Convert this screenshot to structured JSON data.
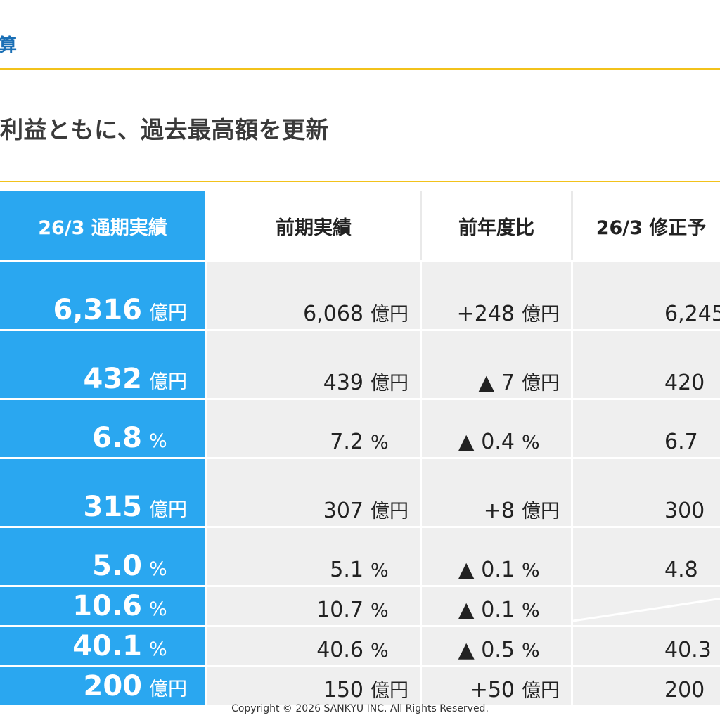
{
  "header": {
    "title_fragment": "算"
  },
  "subtitle": "利益ともに、過去最高額を更新",
  "table": {
    "columns": [
      "26/3 通期実績",
      "前期実績",
      "前年度比",
      "26/3 修正予"
    ],
    "rows": [
      {
        "actual": "6,316",
        "actual_unit": "億円",
        "prev": "6,068",
        "prev_unit": "億円",
        "diff": "+248",
        "diff_unit": "億円",
        "forecast": "6,245"
      },
      {
        "actual": "432",
        "actual_unit": "億円",
        "prev": "439",
        "prev_unit": "億円",
        "diff": "▲ 7",
        "diff_unit": "億円",
        "forecast": "420"
      },
      {
        "actual": "6.8",
        "actual_unit": "%",
        "prev": "7.2",
        "prev_unit": "%",
        "diff": "▲ 0.4",
        "diff_unit": "%",
        "forecast": "6.7"
      },
      {
        "actual": "315",
        "actual_unit": "億円",
        "prev": "307",
        "prev_unit": "億円",
        "diff": "+8",
        "diff_unit": "億円",
        "forecast": "300"
      },
      {
        "actual": "5.0",
        "actual_unit": "%",
        "prev": "5.1",
        "prev_unit": "%",
        "diff": "▲ 0.1",
        "diff_unit": "%",
        "forecast": "4.8"
      },
      {
        "actual": "10.6",
        "actual_unit": "%",
        "prev": "10.7",
        "prev_unit": "%",
        "diff": "▲ 0.1",
        "diff_unit": "%",
        "forecast": ""
      },
      {
        "actual": "40.1",
        "actual_unit": "%",
        "prev": "40.6",
        "prev_unit": "%",
        "diff": "▲ 0.5",
        "diff_unit": "%",
        "forecast": "40.3"
      },
      {
        "actual": "200",
        "actual_unit": "億円",
        "prev": "150",
        "prev_unit": "億円",
        "diff": "+50",
        "diff_unit": "億円",
        "forecast": "200"
      }
    ]
  },
  "footer": {
    "copyright": "Copyright © 2026 SANKYU INC. All Rights Reserved."
  },
  "colors": {
    "accent_blue": "#2aa7f0",
    "title_blue": "#1a6fb5",
    "rule_yellow": "#f2c21b",
    "cell_gray": "#efefef"
  }
}
